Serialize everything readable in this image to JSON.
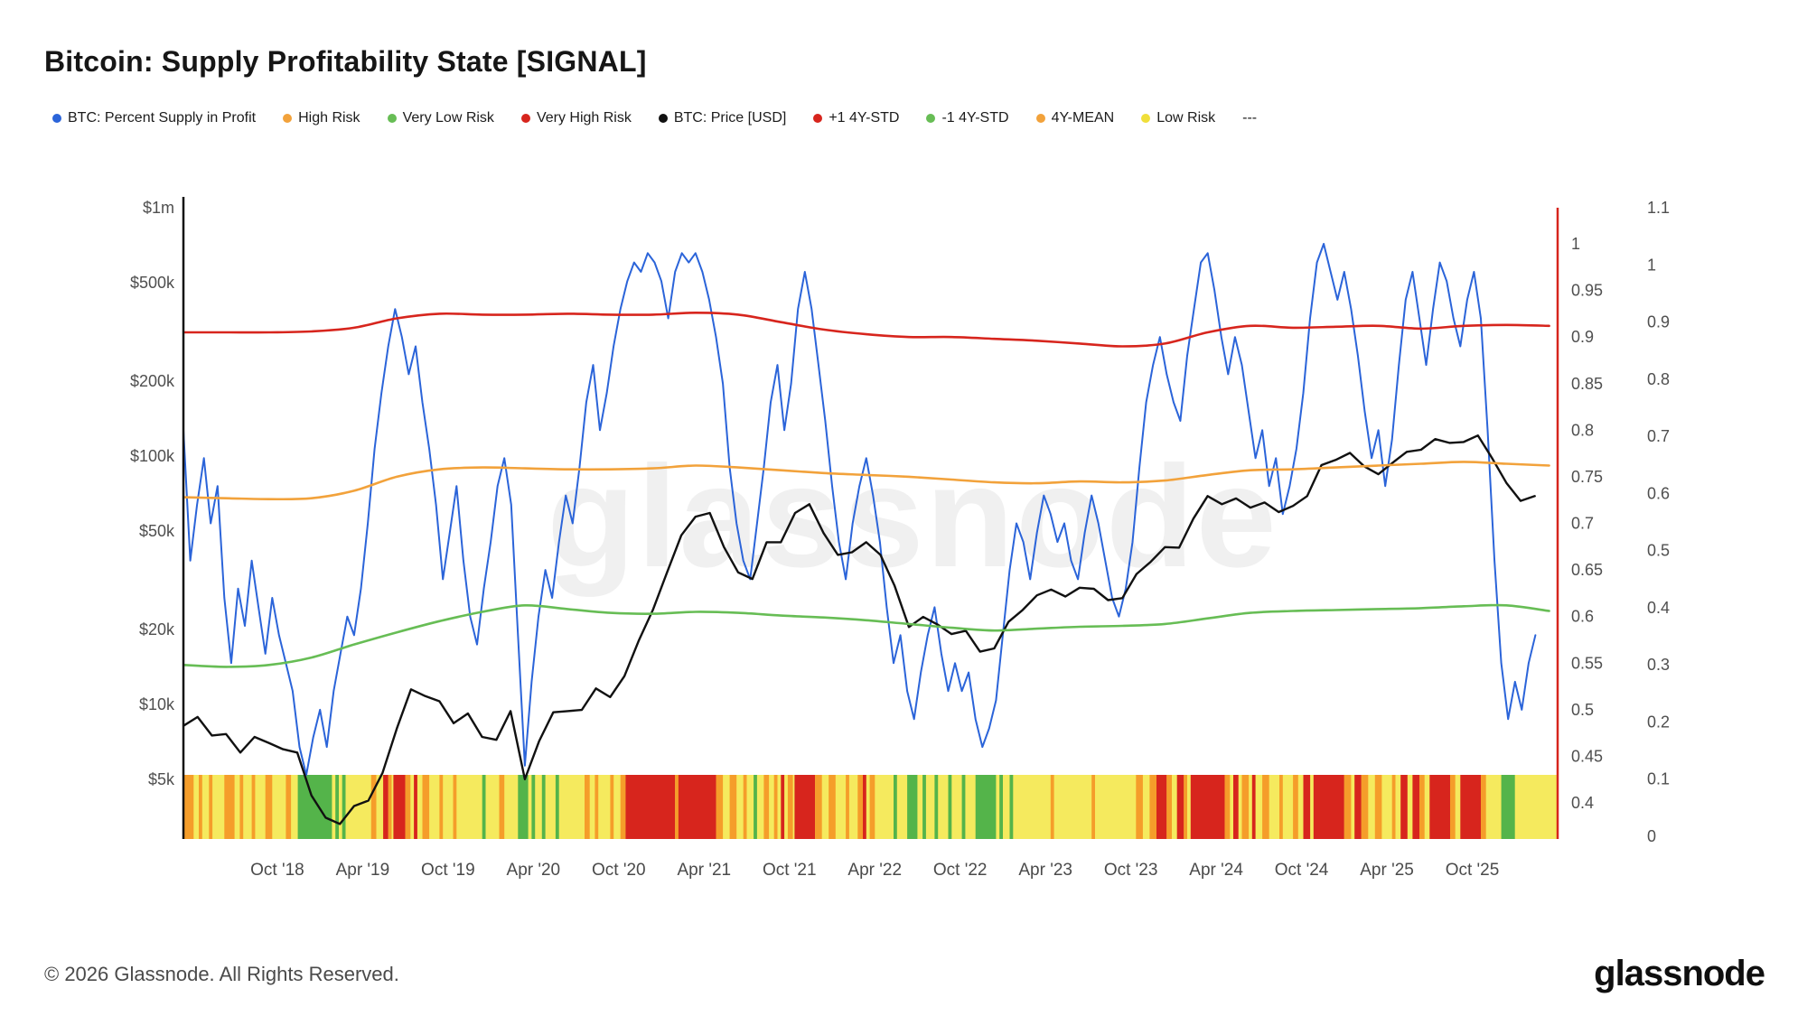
{
  "title": "Bitcoin: Supply Profitability State [SIGNAL]",
  "watermark": "glassnode",
  "footer": {
    "copyright": "© 2026 Glassnode. All Rights Reserved.",
    "brand": "glassnode"
  },
  "legend": [
    {
      "label": "BTC: Percent Supply in Profit",
      "color": "#2b64d9"
    },
    {
      "label": "High Risk",
      "color": "#f2a23b"
    },
    {
      "label": "Very Low Risk",
      "color": "#67bd55"
    },
    {
      "label": "Very High Risk",
      "color": "#d7251d"
    },
    {
      "label": "BTC: Price [USD]",
      "color": "#111111"
    },
    {
      "label": "+1 4Y-STD",
      "color": "#d7251d"
    },
    {
      "label": "-1 4Y-STD",
      "color": "#67bd55"
    },
    {
      "label": "4Y-MEAN",
      "color": "#f2a23b"
    },
    {
      "label": "Low Risk",
      "color": "#f0df3a"
    },
    {
      "label": "---",
      "color": null
    }
  ],
  "chart_data": {
    "type": "line",
    "title": "Bitcoin: Supply Profitability State [SIGNAL]",
    "x_domain": [
      2018.2,
      2026.25
    ],
    "x_axis": {
      "ticks": [
        {
          "label": "Oct '18",
          "t": 2018.75
        },
        {
          "label": "Apr '19",
          "t": 2019.25
        },
        {
          "label": "Oct '19",
          "t": 2019.75
        },
        {
          "label": "Apr '20",
          "t": 2020.25
        },
        {
          "label": "Oct '20",
          "t": 2020.75
        },
        {
          "label": "Apr '21",
          "t": 2021.25
        },
        {
          "label": "Oct '21",
          "t": 2021.75
        },
        {
          "label": "Apr '22",
          "t": 2022.25
        },
        {
          "label": "Oct '22",
          "t": 2022.75
        },
        {
          "label": "Apr '23",
          "t": 2023.25
        },
        {
          "label": "Oct '23",
          "t": 2023.75
        },
        {
          "label": "Apr '24",
          "t": 2024.25
        },
        {
          "label": "Oct '24",
          "t": 2024.75
        },
        {
          "label": "Apr '25",
          "t": 2025.25
        },
        {
          "label": "Oct '25",
          "t": 2025.75
        }
      ]
    },
    "price_axis": {
      "scale": "log",
      "ticks": [
        {
          "label": "$1m",
          "value": 1000000
        },
        {
          "label": "$500k",
          "value": 500000
        },
        {
          "label": "$200k",
          "value": 200000
        },
        {
          "label": "$100k",
          "value": 100000
        },
        {
          "label": "$50k",
          "value": 50000
        },
        {
          "label": "$20k",
          "value": 20000
        },
        {
          "label": "$10k",
          "value": 10000
        },
        {
          "label": "$5k",
          "value": 5000
        }
      ]
    },
    "signal_axis": {
      "color": "#d7251d",
      "range": [
        0.4,
        1.05
      ],
      "ticks": [
        1,
        0.95,
        0.9,
        0.85,
        0.8,
        0.75,
        0.7,
        0.65,
        0.6,
        0.55,
        0.5,
        0.45,
        0.4
      ]
    },
    "aux_axis": {
      "range": [
        0,
        1.1
      ],
      "ticks": [
        1.1,
        1,
        0.9,
        0.8,
        0.7,
        0.6,
        0.5,
        0.4,
        0.3,
        0.2,
        0.1,
        0
      ]
    },
    "series": [
      {
        "name": "BTC: Percent Supply in Profit",
        "slug": "btc-percent-supply-in-profit",
        "color": "#2b64d9",
        "axis": "signal",
        "width": 2,
        "smooth": false,
        "start": 2018.2,
        "step": 0.04,
        "values": [
          0.8,
          0.66,
          0.72,
          0.77,
          0.7,
          0.74,
          0.62,
          0.55,
          0.63,
          0.59,
          0.66,
          0.61,
          0.56,
          0.62,
          0.58,
          0.55,
          0.52,
          0.46,
          0.43,
          0.47,
          0.5,
          0.46,
          0.52,
          0.56,
          0.6,
          0.58,
          0.63,
          0.7,
          0.78,
          0.84,
          0.89,
          0.93,
          0.9,
          0.86,
          0.89,
          0.83,
          0.78,
          0.72,
          0.64,
          0.69,
          0.74,
          0.66,
          0.6,
          0.57,
          0.63,
          0.68,
          0.74,
          0.77,
          0.72,
          0.58,
          0.44,
          0.53,
          0.6,
          0.65,
          0.62,
          0.68,
          0.73,
          0.7,
          0.76,
          0.83,
          0.87,
          0.8,
          0.84,
          0.89,
          0.93,
          0.96,
          0.98,
          0.97,
          0.99,
          0.98,
          0.96,
          0.92,
          0.97,
          0.99,
          0.98,
          0.99,
          0.97,
          0.94,
          0.9,
          0.85,
          0.76,
          0.7,
          0.66,
          0.64,
          0.7,
          0.76,
          0.83,
          0.87,
          0.8,
          0.85,
          0.93,
          0.97,
          0.93,
          0.87,
          0.81,
          0.74,
          0.68,
          0.64,
          0.7,
          0.74,
          0.77,
          0.73,
          0.68,
          0.61,
          0.55,
          0.58,
          0.52,
          0.49,
          0.54,
          0.58,
          0.61,
          0.56,
          0.52,
          0.55,
          0.52,
          0.54,
          0.49,
          0.46,
          0.48,
          0.51,
          0.58,
          0.65,
          0.7,
          0.68,
          0.64,
          0.69,
          0.73,
          0.71,
          0.68,
          0.7,
          0.66,
          0.64,
          0.69,
          0.73,
          0.7,
          0.66,
          0.62,
          0.6,
          0.63,
          0.68,
          0.76,
          0.83,
          0.87,
          0.9,
          0.86,
          0.83,
          0.81,
          0.88,
          0.93,
          0.98,
          0.99,
          0.95,
          0.9,
          0.86,
          0.9,
          0.87,
          0.82,
          0.77,
          0.8,
          0.74,
          0.77,
          0.71,
          0.74,
          0.78,
          0.84,
          0.92,
          0.98,
          1.0,
          0.97,
          0.94,
          0.97,
          0.93,
          0.88,
          0.82,
          0.77,
          0.8,
          0.74,
          0.79,
          0.87,
          0.94,
          0.97,
          0.92,
          0.87,
          0.93,
          0.98,
          0.96,
          0.92,
          0.89,
          0.94,
          0.97,
          0.92,
          0.8,
          0.66,
          0.55,
          0.49,
          0.53,
          0.5,
          0.55,
          0.58
        ]
      },
      {
        "name": "BTC: Price [USD]",
        "slug": "btc-price-usd",
        "color": "#111111",
        "axis": "price",
        "width": 2.4,
        "smooth": false,
        "start": 2018.2,
        "step": 0.08333,
        "values": [
          8200,
          8900,
          7500,
          7600,
          6400,
          7400,
          7000,
          6600,
          6400,
          4300,
          3500,
          3300,
          3900,
          4100,
          5300,
          8000,
          11500,
          10800,
          10300,
          8400,
          9200,
          7400,
          7200,
          9400,
          5000,
          7100,
          9300,
          9400,
          9500,
          11600,
          10700,
          13000,
          18000,
          24000,
          34000,
          48000,
          57000,
          59000,
          43000,
          34000,
          32000,
          45000,
          45000,
          59000,
          64000,
          49000,
          40000,
          41000,
          45000,
          40000,
          30000,
          20500,
          22500,
          21000,
          19200,
          19800,
          16300,
          16800,
          21500,
          24000,
          27500,
          29000,
          27200,
          29500,
          29200,
          26300,
          26800,
          33500,
          37500,
          43000,
          42800,
          56000,
          69000,
          64000,
          67500,
          62000,
          65000,
          59500,
          63000,
          69000,
          92000,
          96500,
          103000,
          91000,
          84500,
          94000,
          104000,
          106000,
          117000,
          113000,
          114000,
          121000,
          98000,
          78000,
          66000,
          69000
        ]
      },
      {
        "name": "-1 4Y-STD",
        "slug": "minus-1-4y-std",
        "color": "#67bd55",
        "axis": "signal",
        "width": 2.6,
        "smooth": true,
        "start": 2018.2,
        "step": 0.25,
        "values": [
          0.548,
          0.546,
          0.548,
          0.556,
          0.57,
          0.583,
          0.595,
          0.605,
          0.612,
          0.608,
          0.604,
          0.603,
          0.605,
          0.604,
          0.601,
          0.599,
          0.596,
          0.592,
          0.588,
          0.585,
          0.587,
          0.589,
          0.59,
          0.592,
          0.598,
          0.604,
          0.606,
          0.607,
          0.608,
          0.609,
          0.611,
          0.612,
          0.606
        ]
      },
      {
        "name": "4Y-MEAN",
        "slug": "4y-mean",
        "color": "#f2a23b",
        "axis": "signal",
        "width": 2.6,
        "smooth": true,
        "start": 2018.2,
        "step": 0.25,
        "values": [
          0.728,
          0.727,
          0.726,
          0.727,
          0.735,
          0.75,
          0.758,
          0.76,
          0.759,
          0.758,
          0.758,
          0.759,
          0.762,
          0.76,
          0.757,
          0.754,
          0.752,
          0.75,
          0.747,
          0.744,
          0.743,
          0.745,
          0.744,
          0.746,
          0.752,
          0.757,
          0.758,
          0.76,
          0.762,
          0.764,
          0.766,
          0.764,
          0.762
        ]
      },
      {
        "name": "+1 4Y-STD",
        "slug": "plus-1-4y-std",
        "color": "#d7251d",
        "axis": "signal",
        "width": 2.6,
        "smooth": true,
        "start": 2018.2,
        "step": 0.25,
        "values": [
          0.905,
          0.905,
          0.905,
          0.906,
          0.91,
          0.92,
          0.925,
          0.924,
          0.924,
          0.925,
          0.924,
          0.924,
          0.926,
          0.924,
          0.916,
          0.908,
          0.903,
          0.9,
          0.9,
          0.898,
          0.896,
          0.893,
          0.89,
          0.893,
          0.905,
          0.912,
          0.91,
          0.911,
          0.912,
          0.909,
          0.912,
          0.913,
          0.912
        ]
      }
    ],
    "risk_band": {
      "base": "y",
      "palette": {
        "y": "#f5ea5e",
        "o": "#f59d2a",
        "r": "#d7251d",
        "g": "#54b44a"
      },
      "labels": {
        "y": "Low Risk",
        "o": "High Risk",
        "r": "Very High Risk",
        "g": "Very Low Risk"
      },
      "segments": [
        [
          2018.2,
          2018.26,
          "o"
        ],
        [
          2018.29,
          2018.31,
          "o"
        ],
        [
          2018.35,
          2018.37,
          "o"
        ],
        [
          2018.44,
          2018.5,
          "o"
        ],
        [
          2018.53,
          2018.55,
          "o"
        ],
        [
          2018.6,
          2018.62,
          "o"
        ],
        [
          2018.68,
          2018.72,
          "o"
        ],
        [
          2018.8,
          2018.83,
          "o"
        ],
        [
          2018.87,
          2019.07,
          "g"
        ],
        [
          2019.09,
          2019.11,
          "g"
        ],
        [
          2019.13,
          2019.15,
          "g"
        ],
        [
          2019.3,
          2019.33,
          "o"
        ],
        [
          2019.37,
          2019.4,
          "r"
        ],
        [
          2019.4,
          2019.42,
          "o"
        ],
        [
          2019.43,
          2019.5,
          "r"
        ],
        [
          2019.5,
          2019.53,
          "o"
        ],
        [
          2019.55,
          2019.57,
          "r"
        ],
        [
          2019.6,
          2019.64,
          "o"
        ],
        [
          2019.7,
          2019.72,
          "o"
        ],
        [
          2019.78,
          2019.8,
          "o"
        ],
        [
          2019.95,
          2019.97,
          "g"
        ],
        [
          2020.05,
          2020.08,
          "o"
        ],
        [
          2020.16,
          2020.22,
          "g"
        ],
        [
          2020.24,
          2020.26,
          "g"
        ],
        [
          2020.3,
          2020.32,
          "g"
        ],
        [
          2020.38,
          2020.4,
          "g"
        ],
        [
          2020.55,
          2020.58,
          "o"
        ],
        [
          2020.61,
          2020.63,
          "o"
        ],
        [
          2020.7,
          2020.72,
          "o"
        ],
        [
          2020.76,
          2020.79,
          "o"
        ],
        [
          2020.79,
          2021.08,
          "r"
        ],
        [
          2021.08,
          2021.1,
          "o"
        ],
        [
          2021.1,
          2021.32,
          "r"
        ],
        [
          2021.32,
          2021.36,
          "o"
        ],
        [
          2021.4,
          2021.44,
          "o"
        ],
        [
          2021.48,
          2021.5,
          "o"
        ],
        [
          2021.54,
          2021.56,
          "g"
        ],
        [
          2021.6,
          2021.63,
          "o"
        ],
        [
          2021.66,
          2021.68,
          "o"
        ],
        [
          2021.7,
          2021.72,
          "r"
        ],
        [
          2021.74,
          2021.77,
          "o"
        ],
        [
          2021.78,
          2021.9,
          "r"
        ],
        [
          2021.9,
          2021.94,
          "o"
        ],
        [
          2021.98,
          2022.02,
          "o"
        ],
        [
          2022.08,
          2022.1,
          "o"
        ],
        [
          2022.15,
          2022.18,
          "o"
        ],
        [
          2022.18,
          2022.2,
          "r"
        ],
        [
          2022.22,
          2022.25,
          "o"
        ],
        [
          2022.36,
          2022.38,
          "g"
        ],
        [
          2022.44,
          2022.5,
          "g"
        ],
        [
          2022.53,
          2022.55,
          "g"
        ],
        [
          2022.6,
          2022.62,
          "g"
        ],
        [
          2022.68,
          2022.7,
          "g"
        ],
        [
          2022.76,
          2022.78,
          "g"
        ],
        [
          2022.84,
          2022.96,
          "g"
        ],
        [
          2022.98,
          2023.0,
          "g"
        ],
        [
          2023.04,
          2023.06,
          "g"
        ],
        [
          2023.28,
          2023.3,
          "o"
        ],
        [
          2023.52,
          2023.54,
          "o"
        ],
        [
          2023.78,
          2023.82,
          "o"
        ],
        [
          2023.86,
          2023.9,
          "o"
        ],
        [
          2023.9,
          2023.96,
          "r"
        ],
        [
          2023.96,
          2023.99,
          "o"
        ],
        [
          2024.02,
          2024.06,
          "r"
        ],
        [
          2024.06,
          2024.08,
          "o"
        ],
        [
          2024.1,
          2024.3,
          "r"
        ],
        [
          2024.3,
          2024.33,
          "o"
        ],
        [
          2024.35,
          2024.38,
          "r"
        ],
        [
          2024.4,
          2024.44,
          "o"
        ],
        [
          2024.46,
          2024.48,
          "r"
        ],
        [
          2024.52,
          2024.56,
          "o"
        ],
        [
          2024.62,
          2024.64,
          "o"
        ],
        [
          2024.7,
          2024.73,
          "o"
        ],
        [
          2024.76,
          2024.8,
          "r"
        ],
        [
          2024.82,
          2025.0,
          "r"
        ],
        [
          2025.0,
          2025.04,
          "o"
        ],
        [
          2025.06,
          2025.1,
          "r"
        ],
        [
          2025.1,
          2025.14,
          "o"
        ],
        [
          2025.18,
          2025.22,
          "o"
        ],
        [
          2025.28,
          2025.3,
          "o"
        ],
        [
          2025.33,
          2025.37,
          "r"
        ],
        [
          2025.4,
          2025.44,
          "r"
        ],
        [
          2025.44,
          2025.47,
          "o"
        ],
        [
          2025.5,
          2025.62,
          "r"
        ],
        [
          2025.62,
          2025.65,
          "o"
        ],
        [
          2025.68,
          2025.8,
          "r"
        ],
        [
          2025.8,
          2025.83,
          "o"
        ],
        [
          2025.92,
          2026.0,
          "g"
        ]
      ]
    }
  }
}
